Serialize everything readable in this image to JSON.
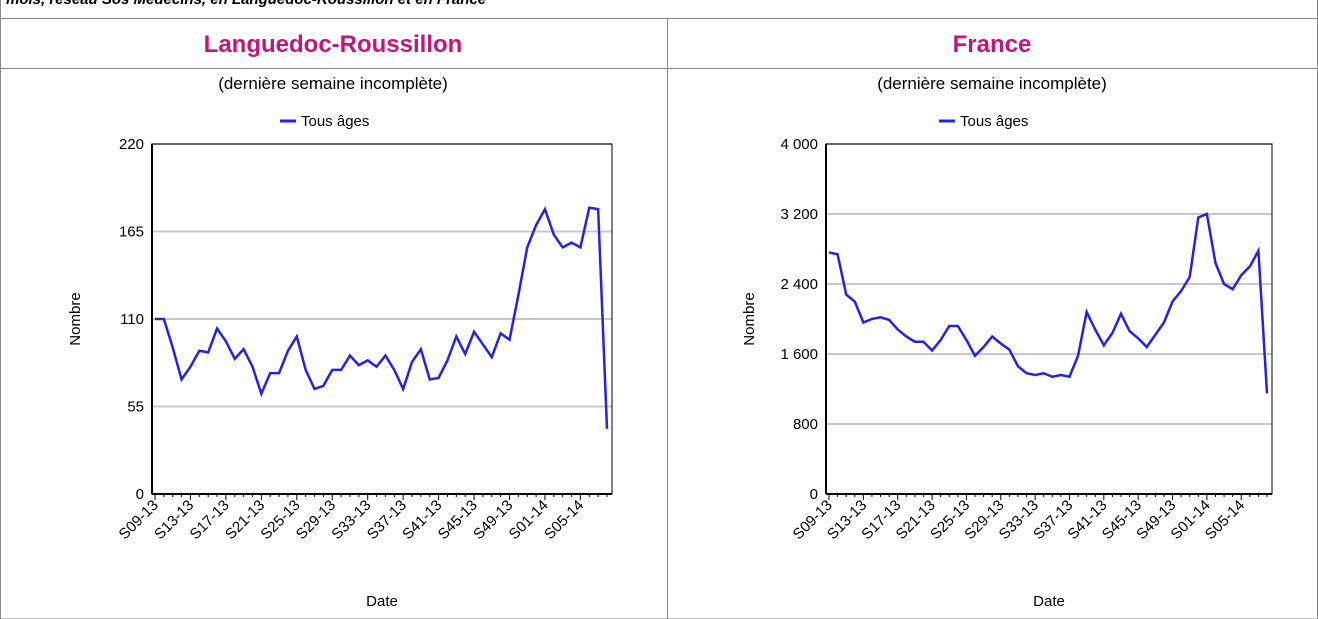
{
  "header": "mois, réseau Sos Médecins, en Languedoc-Roussillon et en France",
  "chart_data": [
    {
      "type": "line",
      "title": "Languedoc-Roussillon",
      "subtitle": "(dernière semaine incomplète)",
      "x_label": "Date",
      "y_label": "Nombre",
      "categories": [
        "S09-13",
        null,
        null,
        null,
        "S13-13",
        null,
        null,
        null,
        "S17-13",
        null,
        null,
        null,
        "S21-13",
        null,
        null,
        null,
        "S25-13",
        null,
        null,
        null,
        "S29-13",
        null,
        null,
        null,
        "S33-13",
        null,
        null,
        null,
        "S37-13",
        null,
        null,
        null,
        "S41-13",
        null,
        null,
        null,
        "S45-13",
        null,
        null,
        null,
        "S49-13",
        null,
        null,
        null,
        "S01-14",
        null,
        null,
        null,
        "S05-14",
        null,
        null,
        null
      ],
      "series": [
        {
          "name": "Tous âges",
          "color": "#2323e0",
          "values": [
            110,
            110,
            92,
            72,
            80,
            90,
            89,
            104,
            96,
            85,
            91,
            80,
            63,
            76,
            76,
            90,
            99,
            78,
            66,
            68,
            78,
            78,
            87,
            81,
            84,
            80,
            87,
            78,
            66,
            83,
            91,
            72,
            73,
            84,
            99,
            88,
            102,
            94,
            86,
            101,
            97,
            125,
            155,
            169,
            179,
            163,
            155,
            158,
            155,
            180,
            179,
            41
          ]
        }
      ],
      "ylim": [
        0,
        220
      ],
      "yticks": [
        0,
        55,
        110,
        165,
        220
      ],
      "grid": true
    },
    {
      "type": "line",
      "title": "France",
      "subtitle": "(dernière semaine incomplète)",
      "x_label": "Date",
      "y_label": "Nombre",
      "categories": [
        "S09-13",
        null,
        null,
        null,
        "S13-13",
        null,
        null,
        null,
        "S17-13",
        null,
        null,
        null,
        "S21-13",
        null,
        null,
        null,
        "S25-13",
        null,
        null,
        null,
        "S29-13",
        null,
        null,
        null,
        "S33-13",
        null,
        null,
        null,
        "S37-13",
        null,
        null,
        null,
        "S41-13",
        null,
        null,
        null,
        "S45-13",
        null,
        null,
        null,
        "S49-13",
        null,
        null,
        null,
        "S01-14",
        null,
        null,
        null,
        "S05-14",
        null,
        null,
        null
      ],
      "series": [
        {
          "name": "Tous âges",
          "color": "#2323e0",
          "values": [
            2760,
            2740,
            2280,
            2200,
            1960,
            2000,
            2020,
            1990,
            1880,
            1800,
            1740,
            1740,
            1640,
            1760,
            1920,
            1920,
            1760,
            1580,
            1680,
            1800,
            1720,
            1650,
            1460,
            1380,
            1360,
            1380,
            1340,
            1360,
            1340,
            1580,
            2080,
            1880,
            1700,
            1840,
            2060,
            1860,
            1780,
            1680,
            1820,
            1960,
            2200,
            2320,
            2480,
            3160,
            3200,
            2640,
            2400,
            2340,
            2500,
            2600,
            2780,
            1150
          ]
        }
      ],
      "ylim": [
        0,
        4000
      ],
      "yticks": [
        0,
        800,
        {
          "value": 1600,
          "label": "1 600"
        },
        {
          "value": 2400,
          "label": "2 400"
        },
        {
          "value": 3200,
          "label": "3 200"
        },
        {
          "value": 4000,
          "label": "4 000"
        }
      ],
      "grid": true
    }
  ]
}
